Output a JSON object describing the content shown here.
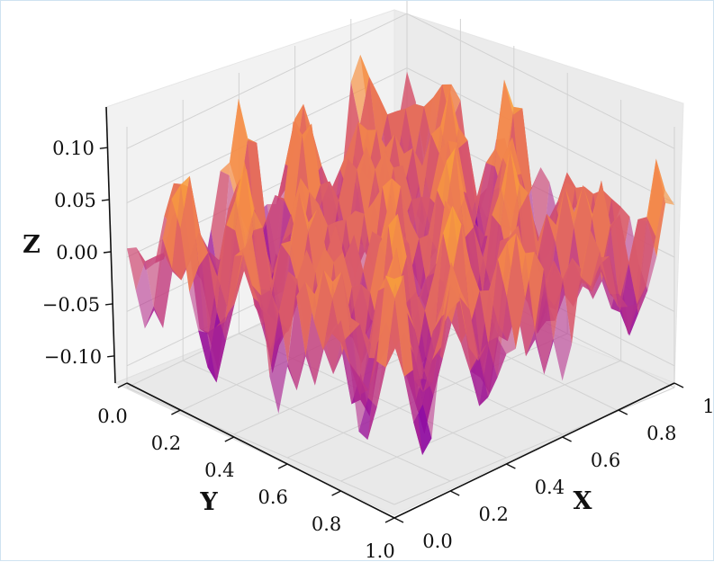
{
  "chart_data": {
    "type": "surface3d",
    "colormap": "plasma",
    "title": "",
    "axes": {
      "x": {
        "label": "X",
        "ticks": [
          "0.0",
          "0.2",
          "0.4",
          "0.6",
          "0.8",
          "1.0"
        ],
        "range": [
          0,
          1
        ]
      },
      "y": {
        "label": "Y",
        "ticks": [
          "0.0",
          "0.2",
          "0.4",
          "0.6",
          "0.8",
          "1.0"
        ],
        "range": [
          0,
          1
        ]
      },
      "z": {
        "label": "Z",
        "ticks": [
          "0.10",
          "0.05",
          "0.00",
          "−0.05",
          "−0.10"
        ],
        "range": [
          -0.12,
          0.12
        ]
      }
    },
    "grid": true,
    "surface": {
      "description": "oscillating z = f(x, y) surface with sharp peaks and troughs",
      "z_min": -0.11,
      "z_max": 0.12,
      "peak": {
        "x": 0.0,
        "y": 1.0,
        "z": 0.12
      },
      "trough": {
        "x": 0.6,
        "y": 0.8,
        "z": -0.11
      }
    }
  }
}
